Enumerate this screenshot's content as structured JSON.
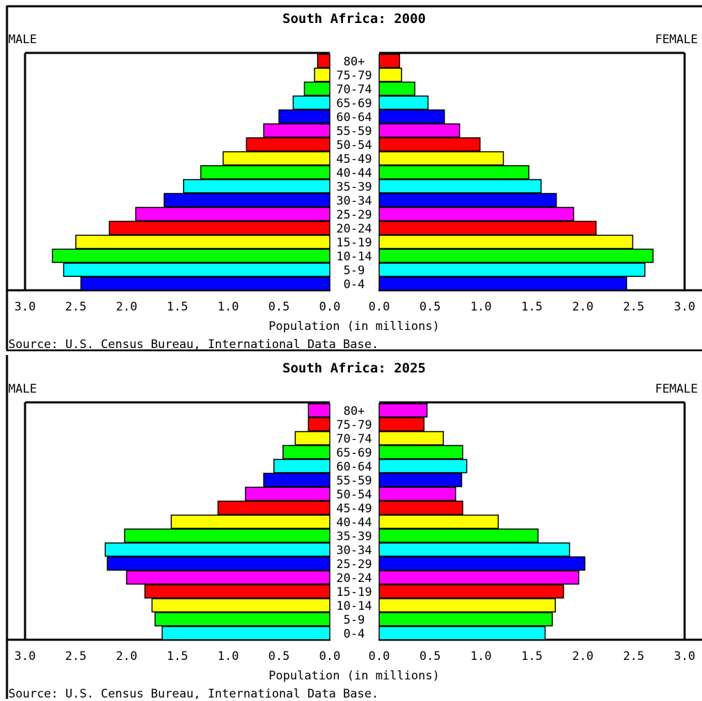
{
  "chart_data": [
    {
      "type": "bar",
      "title": "South Africa: 2000",
      "left_label": "MALE",
      "right_label": "FEMALE",
      "xlabel": "Population (in millions)",
      "source": "Source: U.S. Census Bureau, International Data Base.",
      "xlim": [
        0,
        3.0
      ],
      "x_ticks": [
        "3.0",
        "2.5",
        "2.0",
        "1.5",
        "1.0",
        "0.5",
        "0.0",
        "0.0",
        "0.5",
        "1.0",
        "1.5",
        "2.0",
        "2.5",
        "3.0"
      ],
      "categories": [
        "80+",
        "75-79",
        "70-74",
        "65-69",
        "60-64",
        "55-59",
        "50-54",
        "45-49",
        "40-44",
        "35-39",
        "30-34",
        "25-29",
        "20-24",
        "15-19",
        "10-14",
        "5-9",
        "0-4"
      ],
      "bar_colors": [
        "#ff0000",
        "#ffff00",
        "#00ff00",
        "#00ffff",
        "#0000ff",
        "#ff00ff",
        "#ff0000",
        "#ffff00",
        "#00ff00",
        "#00ffff",
        "#0000ff",
        "#ff00ff",
        "#ff0000",
        "#ffff00",
        "#00ff00",
        "#00ffff",
        "#0000ff"
      ],
      "series": [
        {
          "name": "MALE",
          "values": [
            0.12,
            0.15,
            0.25,
            0.36,
            0.5,
            0.65,
            0.82,
            1.05,
            1.27,
            1.44,
            1.63,
            1.91,
            2.17,
            2.5,
            2.73,
            2.62,
            2.45
          ]
        },
        {
          "name": "FEMALE",
          "values": [
            0.2,
            0.22,
            0.35,
            0.48,
            0.64,
            0.79,
            0.99,
            1.22,
            1.47,
            1.59,
            1.74,
            1.91,
            2.13,
            2.49,
            2.69,
            2.61,
            2.43
          ]
        }
      ]
    },
    {
      "type": "bar",
      "title": "South Africa: 2025",
      "left_label": "MALE",
      "right_label": "FEMALE",
      "xlabel": "Population (in millions)",
      "source": "Source: U.S. Census Bureau, International Data Base.",
      "xlim": [
        0,
        3.0
      ],
      "x_ticks": [
        "3.0",
        "2.5",
        "2.0",
        "1.5",
        "1.0",
        "0.5",
        "0.0",
        "0.0",
        "0.5",
        "1.0",
        "1.5",
        "2.0",
        "2.5",
        "3.0"
      ],
      "categories": [
        "80+",
        "75-79",
        "70-74",
        "65-69",
        "60-64",
        "55-59",
        "50-54",
        "45-49",
        "40-44",
        "35-39",
        "30-34",
        "25-29",
        "20-24",
        "15-19",
        "10-14",
        "5-9",
        "0-4"
      ],
      "bar_colors": [
        "#ff00ff",
        "#ff0000",
        "#ffff00",
        "#00ff00",
        "#00ffff",
        "#0000ff",
        "#ff00ff",
        "#ff0000",
        "#ffff00",
        "#00ff00",
        "#00ffff",
        "#0000ff",
        "#ff00ff",
        "#ff0000",
        "#ffff00",
        "#00ff00",
        "#00ffff"
      ],
      "series": [
        {
          "name": "MALE",
          "values": [
            0.21,
            0.21,
            0.34,
            0.46,
            0.55,
            0.65,
            0.83,
            1.1,
            1.56,
            2.02,
            2.21,
            2.19,
            2.0,
            1.82,
            1.75,
            1.72,
            1.65
          ]
        },
        {
          "name": "FEMALE",
          "values": [
            0.47,
            0.44,
            0.63,
            0.82,
            0.86,
            0.81,
            0.75,
            0.82,
            1.17,
            1.56,
            1.87,
            2.02,
            1.96,
            1.81,
            1.73,
            1.7,
            1.63
          ]
        }
      ]
    }
  ]
}
